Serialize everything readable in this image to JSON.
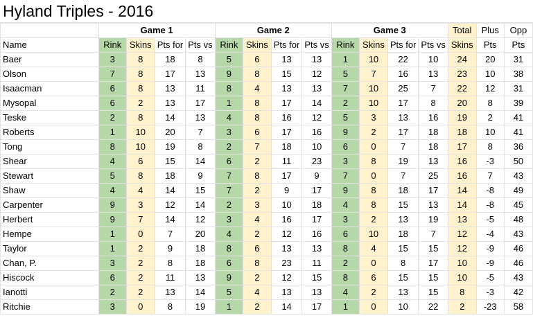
{
  "title": "Hyland Triples - 2016",
  "header": {
    "game1": "Game 1",
    "game2": "Game 2",
    "game3": "Game 3",
    "total": "Total",
    "plus": "Plus",
    "opp": "Opp",
    "name": "Name",
    "rink": "Rink",
    "skins": "Skins",
    "pts_for": "Pts for",
    "pts_vs": "Pts vs",
    "pts": "Pts"
  },
  "colors": {
    "rink_fill": "#b6d7a8",
    "skins_fill": "#fff2cc",
    "grid_line": "#e2e2e2"
  },
  "rows": [
    {
      "name": "Baer",
      "g1": [
        "3",
        "8",
        "18",
        "8"
      ],
      "g2": [
        "5",
        "6",
        "13",
        "13"
      ],
      "g3": [
        "1",
        "10",
        "22",
        "10"
      ],
      "total": "24",
      "plus": "20",
      "opp": "31"
    },
    {
      "name": "Olson",
      "g1": [
        "7",
        "8",
        "17",
        "13"
      ],
      "g2": [
        "9",
        "8",
        "15",
        "12"
      ],
      "g3": [
        "5",
        "7",
        "16",
        "13"
      ],
      "total": "23",
      "plus": "10",
      "opp": "38"
    },
    {
      "name": "Isaacman",
      "g1": [
        "6",
        "8",
        "13",
        "11"
      ],
      "g2": [
        "8",
        "4",
        "13",
        "13"
      ],
      "g3": [
        "7",
        "10",
        "25",
        "7"
      ],
      "total": "22",
      "plus": "12",
      "opp": "31"
    },
    {
      "name": "Mysopal",
      "g1": [
        "6",
        "2",
        "13",
        "17"
      ],
      "g2": [
        "1",
        "8",
        "17",
        "14"
      ],
      "g3": [
        "2",
        "10",
        "17",
        "8"
      ],
      "total": "20",
      "plus": "8",
      "opp": "39"
    },
    {
      "name": "Teske",
      "g1": [
        "2",
        "8",
        "14",
        "13"
      ],
      "g2": [
        "4",
        "8",
        "16",
        "12"
      ],
      "g3": [
        "5",
        "3",
        "13",
        "16"
      ],
      "total": "19",
      "plus": "2",
      "opp": "41"
    },
    {
      "name": "Roberts",
      "g1": [
        "1",
        "10",
        "20",
        "7"
      ],
      "g2": [
        "3",
        "6",
        "17",
        "16"
      ],
      "g3": [
        "9",
        "2",
        "17",
        "18"
      ],
      "total": "18",
      "plus": "10",
      "opp": "41"
    },
    {
      "name": "Tong",
      "g1": [
        "8",
        "10",
        "19",
        "8"
      ],
      "g2": [
        "2",
        "7",
        "18",
        "10"
      ],
      "g3": [
        "6",
        "0",
        "7",
        "18"
      ],
      "total": "17",
      "plus": "8",
      "opp": "36"
    },
    {
      "name": "Shear",
      "g1": [
        "4",
        "6",
        "15",
        "14"
      ],
      "g2": [
        "6",
        "2",
        "11",
        "23"
      ],
      "g3": [
        "3",
        "8",
        "19",
        "13"
      ],
      "total": "16",
      "plus": "-3",
      "opp": "50"
    },
    {
      "name": "Stewart",
      "g1": [
        "5",
        "8",
        "18",
        "9"
      ],
      "g2": [
        "7",
        "8",
        "17",
        "9"
      ],
      "g3": [
        "7",
        "0",
        "7",
        "25"
      ],
      "total": "16",
      "plus": "7",
      "opp": "43"
    },
    {
      "name": "Shaw",
      "g1": [
        "4",
        "4",
        "14",
        "15"
      ],
      "g2": [
        "7",
        "2",
        "9",
        "17"
      ],
      "g3": [
        "9",
        "8",
        "18",
        "17"
      ],
      "total": "14",
      "plus": "-8",
      "opp": "49"
    },
    {
      "name": "Carpenter",
      "g1": [
        "9",
        "3",
        "12",
        "14"
      ],
      "g2": [
        "2",
        "3",
        "10",
        "18"
      ],
      "g3": [
        "4",
        "8",
        "15",
        "13"
      ],
      "total": "14",
      "plus": "-8",
      "opp": "45"
    },
    {
      "name": "Herbert",
      "g1": [
        "9",
        "7",
        "14",
        "12"
      ],
      "g2": [
        "3",
        "4",
        "16",
        "17"
      ],
      "g3": [
        "3",
        "2",
        "13",
        "19"
      ],
      "total": "13",
      "plus": "-5",
      "opp": "48"
    },
    {
      "name": "Hempe",
      "g1": [
        "1",
        "0",
        "7",
        "20"
      ],
      "g2": [
        "4",
        "2",
        "12",
        "16"
      ],
      "g3": [
        "6",
        "10",
        "18",
        "7"
      ],
      "total": "12",
      "plus": "-4",
      "opp": "43"
    },
    {
      "name": "Taylor",
      "g1": [
        "1",
        "2",
        "9",
        "18"
      ],
      "g2": [
        "8",
        "6",
        "13",
        "13"
      ],
      "g3": [
        "8",
        "4",
        "15",
        "15"
      ],
      "total": "12",
      "plus": "-9",
      "opp": "46"
    },
    {
      "name": "Chan, P.",
      "g1": [
        "3",
        "2",
        "8",
        "18"
      ],
      "g2": [
        "6",
        "8",
        "23",
        "11"
      ],
      "g3": [
        "2",
        "0",
        "8",
        "17"
      ],
      "total": "10",
      "plus": "-9",
      "opp": "46"
    },
    {
      "name": "Hiscock",
      "g1": [
        "6",
        "2",
        "11",
        "13"
      ],
      "g2": [
        "9",
        "2",
        "12",
        "15"
      ],
      "g3": [
        "8",
        "6",
        "15",
        "15"
      ],
      "total": "10",
      "plus": "-5",
      "opp": "43"
    },
    {
      "name": "Ianotti",
      "g1": [
        "2",
        "2",
        "13",
        "14"
      ],
      "g2": [
        "5",
        "4",
        "13",
        "13"
      ],
      "g3": [
        "4",
        "2",
        "13",
        "15"
      ],
      "total": "8",
      "plus": "-3",
      "opp": "42"
    },
    {
      "name": "Ritchie",
      "g1": [
        "3",
        "0",
        "8",
        "19"
      ],
      "g2": [
        "1",
        "2",
        "14",
        "17"
      ],
      "g3": [
        "1",
        "0",
        "10",
        "22"
      ],
      "total": "2",
      "plus": "-23",
      "opp": "58"
    }
  ]
}
